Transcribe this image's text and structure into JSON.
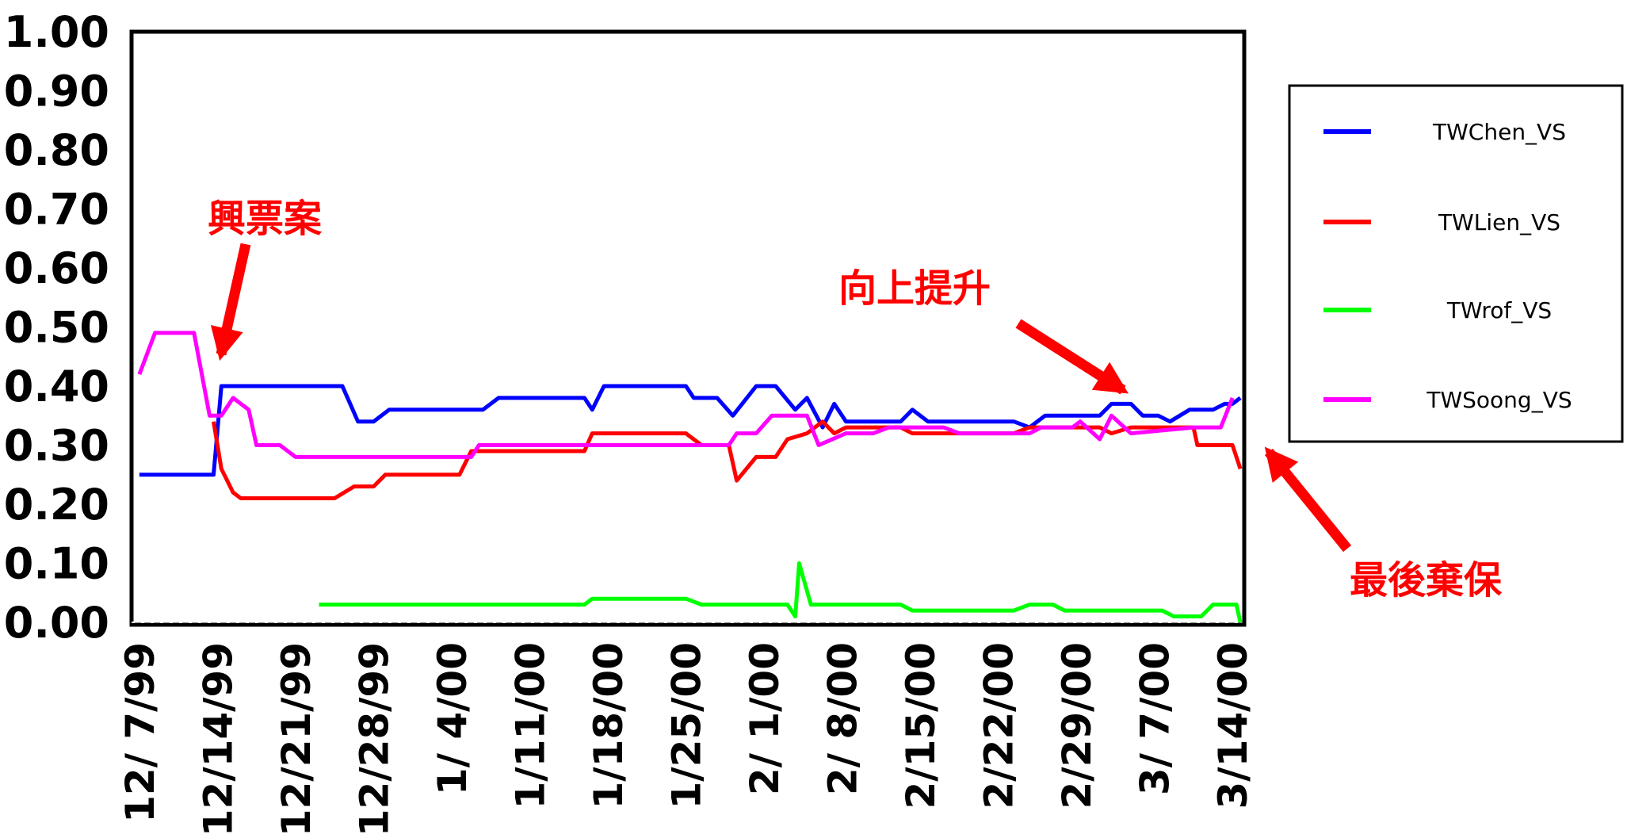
{
  "chart_data": {
    "type": "line",
    "title": "",
    "xlabel": "",
    "ylabel": "",
    "ylim": [
      0,
      1
    ],
    "y_ticks": [
      "0.00",
      "0.10",
      "0.20",
      "0.30",
      "0.40",
      "0.50",
      "0.60",
      "0.70",
      "0.80",
      "0.90",
      "1.00"
    ],
    "x_ticks": [
      "12/ 7/99",
      "12/14/99",
      "12/21/99",
      "12/28/99",
      "1/ 4/00",
      "1/11/00",
      "1/18/00",
      "1/25/00",
      "2/ 1/00",
      "2/ 8/00",
      "2/15/00",
      "2/22/00",
      "2/29/00",
      "3/ 7/00",
      "3/14/00"
    ],
    "x_range": [
      -0.1,
      14.15
    ],
    "grid": false,
    "legend_position": "right",
    "series": [
      {
        "name": "TWChen_VS",
        "color": "#0000ff",
        "points": [
          [
            0,
            0.25
          ],
          [
            0.95,
            0.25
          ],
          [
            1.05,
            0.4
          ],
          [
            2.6,
            0.4
          ],
          [
            2.8,
            0.34
          ],
          [
            3.0,
            0.34
          ],
          [
            3.2,
            0.36
          ],
          [
            4.4,
            0.36
          ],
          [
            4.6,
            0.38
          ],
          [
            5.7,
            0.38
          ],
          [
            5.8,
            0.36
          ],
          [
            5.95,
            0.4
          ],
          [
            7.0,
            0.4
          ],
          [
            7.1,
            0.38
          ],
          [
            7.4,
            0.38
          ],
          [
            7.6,
            0.35
          ],
          [
            7.9,
            0.4
          ],
          [
            8.15,
            0.4
          ],
          [
            8.4,
            0.36
          ],
          [
            8.55,
            0.38
          ],
          [
            8.75,
            0.33
          ],
          [
            8.9,
            0.37
          ],
          [
            9.05,
            0.34
          ],
          [
            9.75,
            0.34
          ],
          [
            9.9,
            0.36
          ],
          [
            10.1,
            0.34
          ],
          [
            11.2,
            0.34
          ],
          [
            11.4,
            0.33
          ],
          [
            11.6,
            0.35
          ],
          [
            12.3,
            0.35
          ],
          [
            12.45,
            0.37
          ],
          [
            12.7,
            0.37
          ],
          [
            12.85,
            0.35
          ],
          [
            13.05,
            0.35
          ],
          [
            13.2,
            0.34
          ],
          [
            13.45,
            0.36
          ],
          [
            13.75,
            0.36
          ],
          [
            13.9,
            0.37
          ],
          [
            14.0,
            0.37
          ],
          [
            14.1,
            0.38
          ]
        ]
      },
      {
        "name": "TWLien_VS",
        "color": "#ff0000",
        "points": [
          [
            0.95,
            0.34
          ],
          [
            1.05,
            0.26
          ],
          [
            1.2,
            0.22
          ],
          [
            1.3,
            0.21
          ],
          [
            2.5,
            0.21
          ],
          [
            2.75,
            0.23
          ],
          [
            3.0,
            0.23
          ],
          [
            3.15,
            0.25
          ],
          [
            4.1,
            0.25
          ],
          [
            4.25,
            0.29
          ],
          [
            5.7,
            0.29
          ],
          [
            5.8,
            0.32
          ],
          [
            7.0,
            0.32
          ],
          [
            7.2,
            0.3
          ],
          [
            7.55,
            0.3
          ],
          [
            7.65,
            0.24
          ],
          [
            7.9,
            0.28
          ],
          [
            8.15,
            0.28
          ],
          [
            8.3,
            0.31
          ],
          [
            8.55,
            0.32
          ],
          [
            8.75,
            0.34
          ],
          [
            8.9,
            0.32
          ],
          [
            9.05,
            0.33
          ],
          [
            9.75,
            0.33
          ],
          [
            9.9,
            0.32
          ],
          [
            11.2,
            0.32
          ],
          [
            11.4,
            0.33
          ],
          [
            12.3,
            0.33
          ],
          [
            12.45,
            0.32
          ],
          [
            12.7,
            0.33
          ],
          [
            13.5,
            0.33
          ],
          [
            13.55,
            0.3
          ],
          [
            14.0,
            0.3
          ],
          [
            14.1,
            0.26
          ]
        ]
      },
      {
        "name": "TWrof_VS",
        "color": "#00ff00",
        "points": [
          [
            2.3,
            0.03
          ],
          [
            5.7,
            0.03
          ],
          [
            5.8,
            0.04
          ],
          [
            7.0,
            0.04
          ],
          [
            7.2,
            0.03
          ],
          [
            8.3,
            0.03
          ],
          [
            8.4,
            0.01
          ],
          [
            8.45,
            0.1
          ],
          [
            8.6,
            0.03
          ],
          [
            9.75,
            0.03
          ],
          [
            9.9,
            0.02
          ],
          [
            10.7,
            0.02
          ],
          [
            11.2,
            0.02
          ],
          [
            11.4,
            0.03
          ],
          [
            11.7,
            0.03
          ],
          [
            11.85,
            0.02
          ],
          [
            12.3,
            0.02
          ],
          [
            13.1,
            0.02
          ],
          [
            13.25,
            0.01
          ],
          [
            13.6,
            0.01
          ],
          [
            13.75,
            0.03
          ],
          [
            14.05,
            0.03
          ],
          [
            14.1,
            0.0
          ]
        ]
      },
      {
        "name": "TWSoong_VS",
        "color": "#ff00ff",
        "points": [
          [
            0,
            0.42
          ],
          [
            0.2,
            0.49
          ],
          [
            0.7,
            0.49
          ],
          [
            0.9,
            0.35
          ],
          [
            1.05,
            0.35
          ],
          [
            1.2,
            0.38
          ],
          [
            1.4,
            0.36
          ],
          [
            1.5,
            0.3
          ],
          [
            1.8,
            0.3
          ],
          [
            2.0,
            0.28
          ],
          [
            4.25,
            0.28
          ],
          [
            4.35,
            0.3
          ],
          [
            7.55,
            0.3
          ],
          [
            7.65,
            0.32
          ],
          [
            7.9,
            0.32
          ],
          [
            8.1,
            0.35
          ],
          [
            8.55,
            0.35
          ],
          [
            8.7,
            0.3
          ],
          [
            9.05,
            0.32
          ],
          [
            9.4,
            0.32
          ],
          [
            9.6,
            0.33
          ],
          [
            10.3,
            0.33
          ],
          [
            10.5,
            0.32
          ],
          [
            11.4,
            0.32
          ],
          [
            11.55,
            0.33
          ],
          [
            11.95,
            0.33
          ],
          [
            12.05,
            0.34
          ],
          [
            12.3,
            0.31
          ],
          [
            12.45,
            0.35
          ],
          [
            12.7,
            0.32
          ],
          [
            13.5,
            0.33
          ],
          [
            13.7,
            0.33
          ],
          [
            13.85,
            0.33
          ],
          [
            14.0,
            0.38
          ]
        ]
      }
    ],
    "annotations": [
      {
        "text": "興票案",
        "color": "#ff0000"
      },
      {
        "text": "向上提升",
        "color": "#ff0000"
      },
      {
        "text": "最後棄保",
        "color": "#ff0000"
      }
    ]
  }
}
